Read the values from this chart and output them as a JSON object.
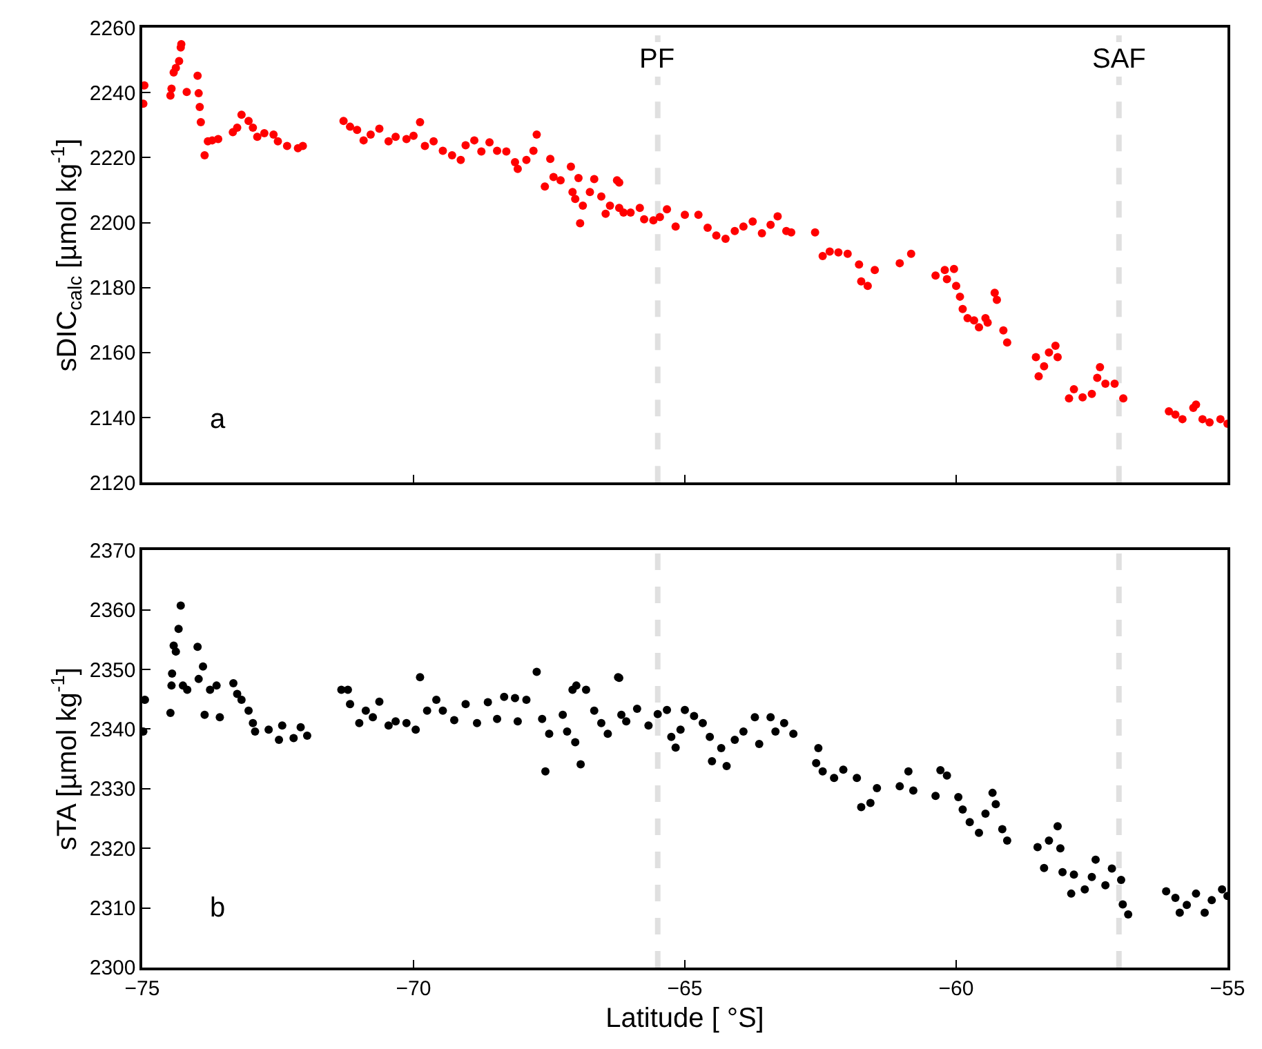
{
  "chart_data": [
    {
      "type": "scatter",
      "ylabel": "sDIC$_{calc}$ [µmol kg$^{-1}$]",
      "annotations": [
        "a"
      ],
      "marker": "circle",
      "grid": false,
      "tick_labels": "y",
      "xlim": [
        -75,
        -55
      ],
      "xticks": [
        {
          "value": -75,
          "label": null
        },
        {
          "value": -70,
          "label": null
        },
        {
          "value": -65,
          "label": null
        },
        {
          "value": -60,
          "label": null
        },
        {
          "value": -55,
          "label": null
        }
      ],
      "ylim": [
        2120,
        2260
      ],
      "yticks": [
        2120,
        2140,
        2160,
        2180,
        2200,
        2220,
        2240,
        2260
      ],
      "ref_lines": [
        {
          "axis": "x",
          "value": -65.5,
          "label": "PF",
          "color": "#e0e0e0",
          "line_style": "dashed"
        },
        {
          "axis": "x",
          "value": -57.0,
          "label": "SAF",
          "color": "#e0e0e0",
          "line_style": "dashed"
        }
      ],
      "series": [
        {
          "color": "#ff0000",
          "x": [
            -74.98,
            -74.96,
            -74.48,
            -74.46,
            -74.42,
            -74.38,
            -74.32,
            -74.29,
            -74.28,
            -74.18,
            -73.98,
            -73.96,
            -73.94,
            -73.92,
            -73.85,
            -73.79,
            -73.71,
            -73.6,
            -73.33,
            -73.25,
            -73.17,
            -73.04,
            -72.96,
            -72.88,
            -72.75,
            -72.58,
            -72.5,
            -72.33,
            -72.13,
            -72.04,
            -71.29,
            -71.17,
            -71.04,
            -70.92,
            -70.79,
            -70.63,
            -70.46,
            -70.33,
            -70.13,
            -70.0,
            -69.88,
            -69.79,
            -69.63,
            -69.46,
            -69.29,
            -69.13,
            -69.04,
            -68.88,
            -68.75,
            -68.6,
            -68.46,
            -68.29,
            -68.13,
            -68.08,
            -67.92,
            -67.79,
            -67.73,
            -67.58,
            -67.48,
            -67.42,
            -67.29,
            -67.1,
            -67.07,
            -67.02,
            -66.96,
            -66.93,
            -66.88,
            -66.75,
            -66.67,
            -66.54,
            -66.46,
            -66.38,
            -66.25,
            -66.21,
            -66.13,
            -66.21,
            -66.0,
            -65.83,
            -65.75,
            -65.58,
            -65.46,
            -65.33,
            -65.17,
            -65.0,
            -64.75,
            -64.58,
            -64.42,
            -64.25,
            -64.08,
            -63.92,
            -63.75,
            -63.58,
            -63.42,
            -63.29,
            -63.13,
            -63.04,
            -62.6,
            -62.46,
            -62.33,
            -62.17,
            -62.0,
            -61.79,
            -61.75,
            -61.63,
            -61.5,
            -61.04,
            -60.83,
            -60.38,
            -60.21,
            -60.17,
            -60.04,
            -60.0,
            -59.93,
            -59.88,
            -59.79,
            -59.67,
            -59.58,
            -59.46,
            -59.42,
            -59.29,
            -59.25,
            -59.13,
            -59.06,
            -58.53,
            -58.48,
            -58.38,
            -58.29,
            -58.17,
            -58.13,
            -57.92,
            -57.83,
            -57.67,
            -57.5,
            -57.4,
            -57.35,
            -57.25,
            -57.08,
            -56.92,
            -56.08,
            -55.96,
            -55.83,
            -55.63,
            -55.58,
            -55.46,
            -55.33,
            -55.13,
            -55.0
          ],
          "values": [
            2236.6,
            2242.2,
            2239.1,
            2241.2,
            2246.2,
            2247.6,
            2249.7,
            2253.9,
            2254.9,
            2240.2,
            2245.2,
            2239.8,
            2235.6,
            2230.9,
            2220.7,
            2225.0,
            2225.3,
            2225.7,
            2227.8,
            2229.2,
            2233.2,
            2231.3,
            2229.2,
            2226.4,
            2227.5,
            2227.1,
            2225.0,
            2223.6,
            2222.9,
            2223.6,
            2231.3,
            2229.5,
            2228.5,
            2225.3,
            2227.1,
            2228.9,
            2225.0,
            2226.4,
            2225.7,
            2226.7,
            2230.9,
            2223.6,
            2225.0,
            2222.1,
            2220.7,
            2219.3,
            2223.8,
            2225.3,
            2221.9,
            2224.7,
            2222.1,
            2221.9,
            2218.6,
            2216.5,
            2219.3,
            2222.1,
            2227.1,
            2211.1,
            2219.6,
            2214.0,
            2213.0,
            2217.2,
            2209.4,
            2207.3,
            2213.7,
            2199.8,
            2205.2,
            2209.4,
            2213.4,
            2208.0,
            2202.7,
            2205.2,
            2213.0,
            2204.5,
            2203.1,
            2212.3,
            2203.1,
            2204.5,
            2201.0,
            2200.7,
            2201.7,
            2204.1,
            2198.8,
            2202.4,
            2202.4,
            2198.4,
            2196.0,
            2195.0,
            2197.4,
            2198.8,
            2200.3,
            2196.7,
            2199.3,
            2201.9,
            2197.4,
            2197.0,
            2197.0,
            2189.7,
            2191.1,
            2190.8,
            2190.4,
            2187.1,
            2181.9,
            2180.5,
            2185.4,
            2187.5,
            2190.4,
            2183.7,
            2185.4,
            2182.6,
            2185.7,
            2180.5,
            2177.2,
            2173.4,
            2170.6,
            2169.9,
            2167.8,
            2170.6,
            2169.2,
            2178.4,
            2176.2,
            2166.8,
            2163.1,
            2158.6,
            2152.7,
            2155.8,
            2160.0,
            2162.1,
            2158.6,
            2145.9,
            2148.7,
            2146.2,
            2147.3,
            2152.2,
            2155.5,
            2150.4,
            2150.4,
            2145.9,
            2141.9,
            2140.9,
            2139.5,
            2143.0,
            2144.0,
            2139.5,
            2138.5,
            2139.5,
            2138.1
          ]
        }
      ]
    },
    {
      "type": "scatter",
      "ylabel": "sTA [µmol kg$^{-1}$]",
      "xlabel": "Latitude [ °S]",
      "annotations": [
        "b"
      ],
      "marker": "circle",
      "grid": false,
      "xlim": [
        -75,
        -55
      ],
      "xticks": [
        -75,
        -70,
        -65,
        -60,
        -55
      ],
      "ylim": [
        2300,
        2370
      ],
      "yticks": [
        2300,
        2310,
        2320,
        2330,
        2340,
        2350,
        2360,
        2370
      ],
      "ref_lines": [
        {
          "axis": "x",
          "value": -65.5,
          "color": "#e0e0e0",
          "line_style": "dashed"
        },
        {
          "axis": "x",
          "value": -57.0,
          "color": "#e0e0e0",
          "line_style": "dashed"
        }
      ],
      "series": [
        {
          "color": "#000000",
          "x": [
            -74.98,
            -74.95,
            -74.48,
            -74.46,
            -74.45,
            -74.42,
            -74.38,
            -74.33,
            -74.29,
            -74.25,
            -74.17,
            -73.98,
            -73.96,
            -73.88,
            -73.85,
            -73.75,
            -73.63,
            -73.57,
            -73.32,
            -73.25,
            -73.17,
            -73.04,
            -72.96,
            -72.92,
            -72.67,
            -72.48,
            -72.42,
            -72.21,
            -72.08,
            -71.96,
            -71.33,
            -71.21,
            -71.17,
            -71.0,
            -70.88,
            -70.75,
            -70.63,
            -70.46,
            -70.33,
            -70.13,
            -69.96,
            -69.88,
            -69.75,
            -69.58,
            -69.46,
            -69.25,
            -69.04,
            -68.83,
            -68.63,
            -68.46,
            -68.33,
            -68.13,
            -68.08,
            -67.92,
            -67.73,
            -67.63,
            -67.57,
            -67.5,
            -67.25,
            -67.17,
            -67.07,
            -67.02,
            -67.0,
            -66.92,
            -66.82,
            -66.67,
            -66.54,
            -66.42,
            -66.23,
            -66.17,
            -66.21,
            -66.08,
            -65.88,
            -65.67,
            -65.5,
            -65.33,
            -65.25,
            -65.17,
            -65.08,
            -65.0,
            -64.83,
            -64.67,
            -64.54,
            -64.5,
            -64.33,
            -64.23,
            -64.08,
            -63.92,
            -63.71,
            -63.63,
            -63.42,
            -63.33,
            -63.17,
            -63.0,
            -62.54,
            -62.58,
            -62.46,
            -62.25,
            -62.08,
            -61.83,
            -61.75,
            -61.58,
            -61.46,
            -61.04,
            -60.88,
            -60.79,
            -60.38,
            -60.29,
            -60.17,
            -59.96,
            -59.88,
            -59.75,
            -59.58,
            -59.46,
            -59.33,
            -59.27,
            -59.15,
            -59.06,
            -58.5,
            -58.38,
            -58.29,
            -58.13,
            -58.08,
            -58.04,
            -57.88,
            -57.83,
            -57.63,
            -57.5,
            -57.43,
            -57.25,
            -57.13,
            -56.96,
            -56.93,
            -56.83,
            -56.13,
            -55.96,
            -55.88,
            -55.75,
            -55.58,
            -55.42,
            -55.29,
            -55.1,
            -55.0
          ],
          "values": [
            2339.6,
            2344.9,
            2342.7,
            2347.3,
            2349.3,
            2354.0,
            2353.0,
            2356.8,
            2360.7,
            2347.3,
            2346.6,
            2353.8,
            2348.4,
            2350.5,
            2342.4,
            2346.6,
            2347.3,
            2342.0,
            2347.7,
            2345.9,
            2344.9,
            2343.1,
            2341.0,
            2339.6,
            2339.9,
            2338.2,
            2340.6,
            2338.5,
            2340.3,
            2338.9,
            2346.6,
            2346.6,
            2344.2,
            2341.0,
            2343.1,
            2342.0,
            2344.6,
            2340.6,
            2341.3,
            2341.0,
            2339.9,
            2348.7,
            2343.1,
            2344.9,
            2343.1,
            2341.5,
            2344.2,
            2341.0,
            2344.5,
            2341.7,
            2345.4,
            2345.2,
            2341.3,
            2344.9,
            2349.6,
            2341.7,
            2332.9,
            2339.2,
            2342.4,
            2339.6,
            2346.6,
            2337.8,
            2347.3,
            2334.1,
            2346.6,
            2343.1,
            2341.0,
            2339.2,
            2348.7,
            2342.4,
            2348.6,
            2341.3,
            2343.4,
            2340.6,
            2342.5,
            2343.2,
            2338.7,
            2336.9,
            2339.9,
            2343.2,
            2342.2,
            2341.0,
            2338.7,
            2334.6,
            2336.8,
            2333.8,
            2338.2,
            2339.6,
            2342.0,
            2337.5,
            2342.0,
            2339.6,
            2341.0,
            2339.2,
            2336.8,
            2334.3,
            2332.9,
            2331.8,
            2333.2,
            2331.8,
            2326.9,
            2327.6,
            2330.1,
            2330.4,
            2332.9,
            2329.7,
            2328.8,
            2333.1,
            2332.2,
            2328.6,
            2326.5,
            2324.4,
            2322.6,
            2325.8,
            2329.3,
            2327.4,
            2323.2,
            2321.3,
            2320.2,
            2316.7,
            2321.3,
            2323.7,
            2320.0,
            2316.0,
            2312.4,
            2315.6,
            2313.1,
            2315.2,
            2318.1,
            2313.8,
            2316.6,
            2314.7,
            2310.6,
            2308.9,
            2312.8,
            2311.7,
            2309.2,
            2310.5,
            2312.4,
            2309.2,
            2311.3,
            2313.1,
            2312.0
          ]
        }
      ]
    }
  ]
}
